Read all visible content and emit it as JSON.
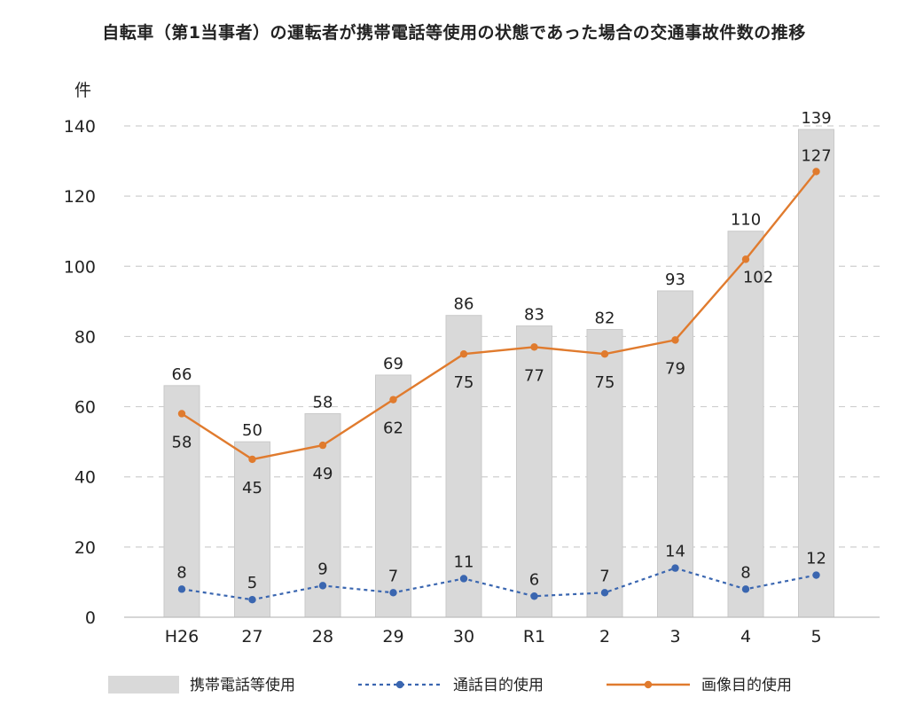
{
  "chart_data": {
    "type": "bar+line",
    "title": "自転車（第1当事者）の運転者が携帯電話等使用の状態であった場合の交通事故件数の推移",
    "ylabel": "件",
    "xlabel": "",
    "ylim": [
      0,
      140
    ],
    "yticks": [
      0,
      20,
      40,
      60,
      80,
      100,
      120,
      140
    ],
    "grid": true,
    "legend_position": "bottom",
    "categories": [
      "H26",
      "27",
      "28",
      "29",
      "30",
      "R1",
      "2",
      "3",
      "4",
      "5"
    ],
    "series": [
      {
        "name": "携帯電話等使用",
        "kind": "bar",
        "color": "#d9d9d9",
        "values": [
          66,
          50,
          58,
          69,
          86,
          83,
          82,
          93,
          110,
          139
        ],
        "labels": [
          "66",
          "50",
          "58",
          "69",
          "86",
          "83",
          "82",
          "93",
          "110",
          "139"
        ]
      },
      {
        "name": "通話目的使用",
        "kind": "line-dashed",
        "color": "#3a66b0",
        "values": [
          8,
          5,
          9,
          7,
          11,
          6,
          7,
          14,
          8,
          12
        ],
        "labels": [
          "8",
          "5",
          "9",
          "7",
          "11",
          "6",
          "7",
          "14",
          "8",
          "12"
        ]
      },
      {
        "name": "画像目的使用",
        "kind": "line",
        "color": "#e07b2e",
        "values": [
          58,
          45,
          49,
          62,
          75,
          77,
          75,
          79,
          102,
          127
        ],
        "labels": [
          "58",
          "45",
          "49",
          "62",
          "75",
          "77",
          "75",
          "79",
          "102",
          "127"
        ]
      }
    ]
  }
}
